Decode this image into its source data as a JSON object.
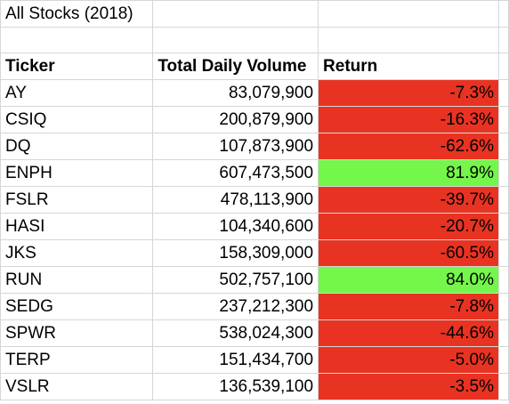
{
  "title": "All Stocks (2018)",
  "headers": {
    "ticker": "Ticker",
    "volume": "Total Daily Volume",
    "return": "Return"
  },
  "colors": {
    "negative": "#e83323",
    "positive": "#74f64a",
    "gridline": "#d6d6d6"
  },
  "rows": [
    {
      "ticker": "AY",
      "volume": "83,079,900",
      "return": "-7.3%",
      "status": "negative"
    },
    {
      "ticker": "CSIQ",
      "volume": "200,879,900",
      "return": "-16.3%",
      "status": "negative"
    },
    {
      "ticker": "DQ",
      "volume": "107,873,900",
      "return": "-62.6%",
      "status": "negative"
    },
    {
      "ticker": "ENPH",
      "volume": "607,473,500",
      "return": "81.9%",
      "status": "positive"
    },
    {
      "ticker": "FSLR",
      "volume": "478,113,900",
      "return": "-39.7%",
      "status": "negative"
    },
    {
      "ticker": "HASI",
      "volume": "104,340,600",
      "return": "-20.7%",
      "status": "negative"
    },
    {
      "ticker": "JKS",
      "volume": "158,309,000",
      "return": "-60.5%",
      "status": "negative"
    },
    {
      "ticker": "RUN",
      "volume": "502,757,100",
      "return": "84.0%",
      "status": "positive"
    },
    {
      "ticker": "SEDG",
      "volume": "237,212,300",
      "return": "-7.8%",
      "status": "negative"
    },
    {
      "ticker": "SPWR",
      "volume": "538,024,300",
      "return": "-44.6%",
      "status": "negative"
    },
    {
      "ticker": "TERP",
      "volume": "151,434,700",
      "return": "-5.0%",
      "status": "negative"
    },
    {
      "ticker": "VSLR",
      "volume": "136,539,100",
      "return": "-3.5%",
      "status": "negative"
    }
  ]
}
